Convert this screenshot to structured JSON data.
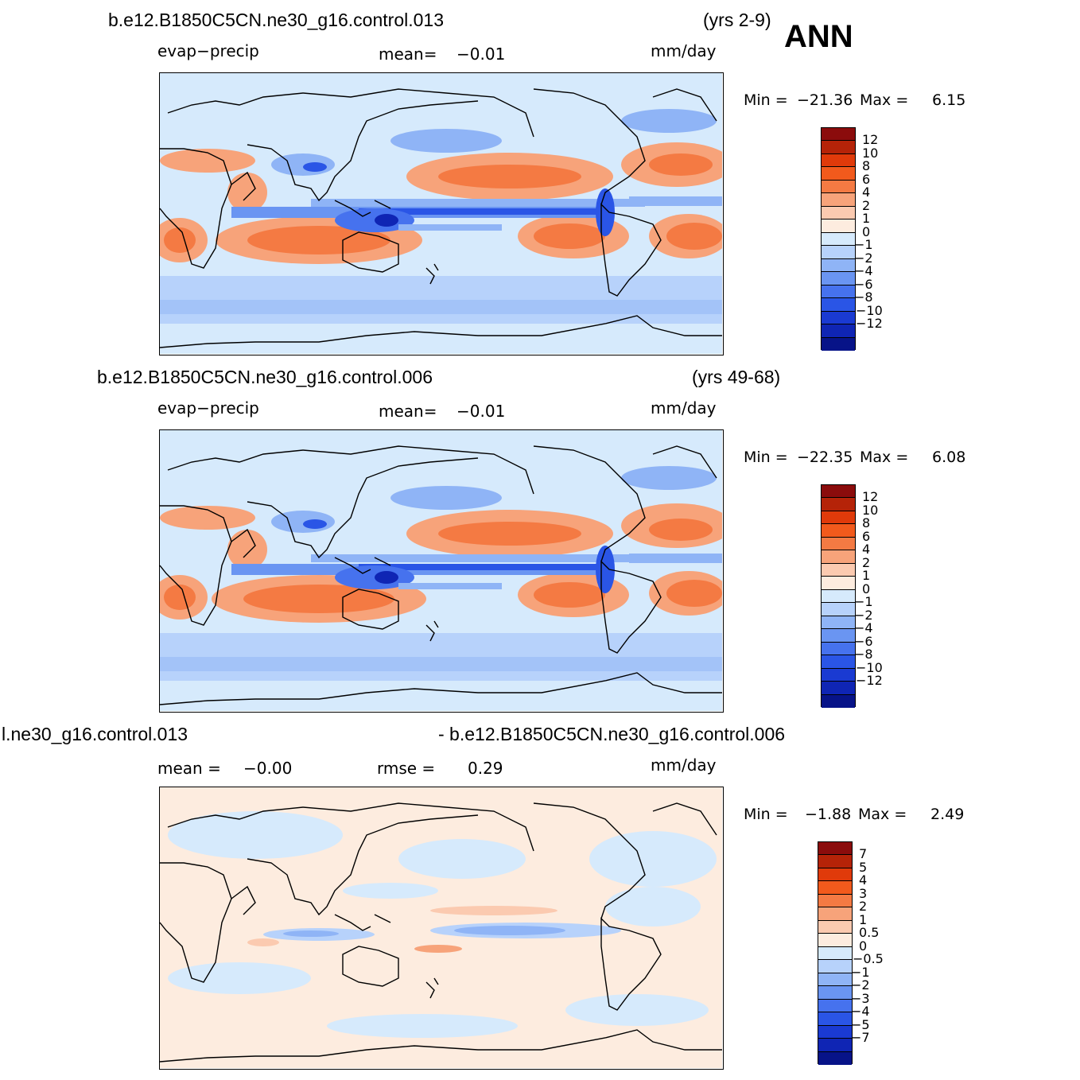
{
  "season": "ANN",
  "panels": [
    {
      "case_title": "b.e12.B1850C5CN.ne30_g16.control.013",
      "years": "(yrs 2-9)",
      "variable": "evap−precip",
      "mean_label": "mean=",
      "mean_value": "−0.01",
      "units": "mm/day",
      "min_label": "Min  =",
      "min_value": "−21.36",
      "max_label": "Max  =",
      "max_value": "6.15",
      "colors": [
        "#8b0c0c",
        "#b52308",
        "#e03a0a",
        "#f25a1c",
        "#f47a43",
        "#f7a37a",
        "#fbcab0",
        "#fdecdf",
        "#d6eafc",
        "#b7d2fb",
        "#8fb4f6",
        "#6a95f2",
        "#4672ee",
        "#2a55e6",
        "#1a3ad2",
        "#0f25b4",
        "#071388"
      ],
      "ticks": [
        "12",
        "10",
        "8",
        "6",
        "4",
        "2",
        "1",
        "0",
        "−1",
        "−2",
        "−4",
        "−6",
        "−8",
        "−10",
        "−12"
      ]
    },
    {
      "case_title": "b.e12.B1850C5CN.ne30_g16.control.006",
      "years": "(yrs 49-68)",
      "variable": "evap−precip",
      "mean_label": "mean=",
      "mean_value": "−0.01",
      "units": "mm/day",
      "min_label": "Min  =",
      "min_value": "−22.35",
      "max_label": "Max  =",
      "max_value": "6.08",
      "colors": [
        "#8b0c0c",
        "#b52308",
        "#e03a0a",
        "#f25a1c",
        "#f47a43",
        "#f7a37a",
        "#fbcab0",
        "#fdecdf",
        "#d6eafc",
        "#b7d2fb",
        "#8fb4f6",
        "#6a95f2",
        "#4672ee",
        "#2a55e6",
        "#1a3ad2",
        "#0f25b4",
        "#071388"
      ],
      "ticks": [
        "12",
        "10",
        "8",
        "6",
        "4",
        "2",
        "1",
        "0",
        "−1",
        "−2",
        "−4",
        "−6",
        "−8",
        "−10",
        "−12"
      ]
    },
    {
      "case_title_left": "l.ne30_g16.control.013",
      "case_title_right": "- b.e12.B1850C5CN.ne30_g16.control.006",
      "mean_label": "mean  =",
      "mean_value": "−0.00",
      "rmse_label": "rmse  =",
      "rmse_value": "0.29",
      "units": "mm/day",
      "min_label": "Min  =",
      "min_value": "−1.88",
      "max_label": "Max  =",
      "max_value": "2.49",
      "colors": [
        "#8b0c0c",
        "#b52308",
        "#e03a0a",
        "#f25a1c",
        "#f47a43",
        "#f7a37a",
        "#fbcab0",
        "#fdecdf",
        "#d6eafc",
        "#b7d2fb",
        "#8fb4f6",
        "#6a95f2",
        "#4672ee",
        "#2a55e6",
        "#1a3ad2",
        "#0f25b4",
        "#071388"
      ],
      "ticks": [
        "7",
        "5",
        "4",
        "3",
        "2",
        "1",
        "0.5",
        "0",
        "−0.5",
        "−1",
        "−2",
        "−3",
        "−4",
        "−5",
        "−7"
      ]
    }
  ]
}
